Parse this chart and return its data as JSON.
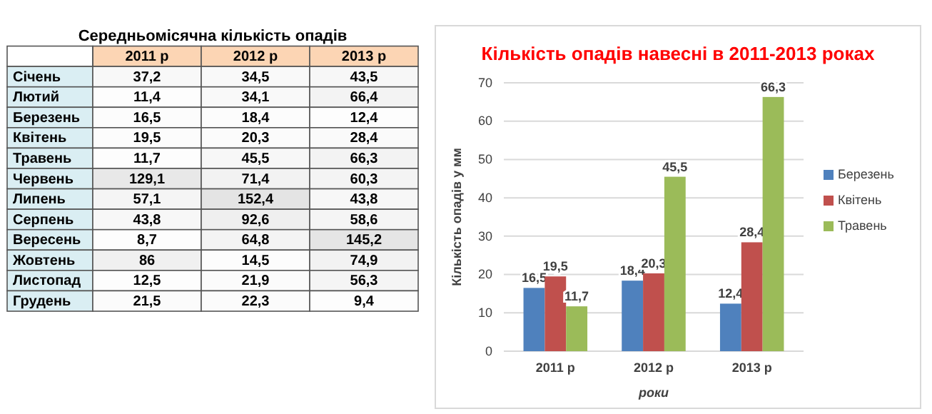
{
  "chart_data": [
    {
      "type": "heatmap",
      "title": "Середньомісячна кількість опадів",
      "categories": [
        "2011 р",
        "2012 р",
        "2013 р"
      ],
      "y_categories": [
        "Січень",
        "Лютий",
        "Березень",
        "Квітень",
        "Травень",
        "Червень",
        "Липень",
        "Серпень",
        "Вересень",
        "Жовтень",
        "Листопад",
        "Грудень"
      ],
      "cells": [
        [
          37.2,
          34.5,
          43.5
        ],
        [
          11.4,
          34.1,
          66.4
        ],
        [
          16.5,
          18.4,
          12.4
        ],
        [
          19.5,
          20.3,
          28.4
        ],
        [
          11.7,
          45.5,
          66.3
        ],
        [
          129.1,
          71.4,
          60.3
        ],
        [
          57.1,
          152.4,
          43.8
        ],
        [
          43.8,
          92.6,
          58.6
        ],
        [
          8.7,
          64.8,
          145.2
        ],
        [
          86,
          14.5,
          74.9
        ],
        [
          12.5,
          21.9,
          56.3
        ],
        [
          21.5,
          22.3,
          9.4
        ]
      ],
      "cell_labels": [
        [
          "37,2",
          "34,5",
          "43,5"
        ],
        [
          "11,4",
          "34,1",
          "66,4"
        ],
        [
          "16,5",
          "18,4",
          "12,4"
        ],
        [
          "19,5",
          "20,3",
          "28,4"
        ],
        [
          "11,7",
          "45,5",
          "66,3"
        ],
        [
          "129,1",
          "71,4",
          "60,3"
        ],
        [
          "57,1",
          "152,4",
          "43,8"
        ],
        [
          "43,8",
          "92,6",
          "58,6"
        ],
        [
          "8,7",
          "64,8",
          "145,2"
        ],
        [
          "86",
          "14,5",
          "74,9"
        ],
        [
          "12,5",
          "21,9",
          "56,3"
        ],
        [
          "21,5",
          "22,3",
          "9,4"
        ]
      ]
    },
    {
      "type": "bar",
      "title": "Кількість опадів навесні в 2011-2013 роках",
      "xlabel": "роки",
      "ylabel": "Кількість опадів у мм",
      "categories": [
        "2011 р",
        "2012 р",
        "2013 р"
      ],
      "series": [
        {
          "name": "Березень",
          "color": "#4f81bd",
          "values": [
            16.5,
            18.4,
            12.4
          ],
          "value_labels": [
            "16,5",
            "18,4",
            "12,4"
          ]
        },
        {
          "name": "Квітень",
          "color": "#c0504d",
          "values": [
            19.5,
            20.3,
            28.4
          ],
          "value_labels": [
            "19,5",
            "20,3",
            "28,4"
          ]
        },
        {
          "name": "Травень",
          "color": "#9bbb59",
          "values": [
            11.7,
            45.5,
            66.3
          ],
          "value_labels": [
            "11,7",
            "45,5",
            "66,3"
          ]
        }
      ],
      "ylim": [
        0,
        70
      ],
      "yticks": [
        0,
        10,
        20,
        30,
        40,
        50,
        60,
        70
      ],
      "grid": "y",
      "legend": "right"
    }
  ]
}
